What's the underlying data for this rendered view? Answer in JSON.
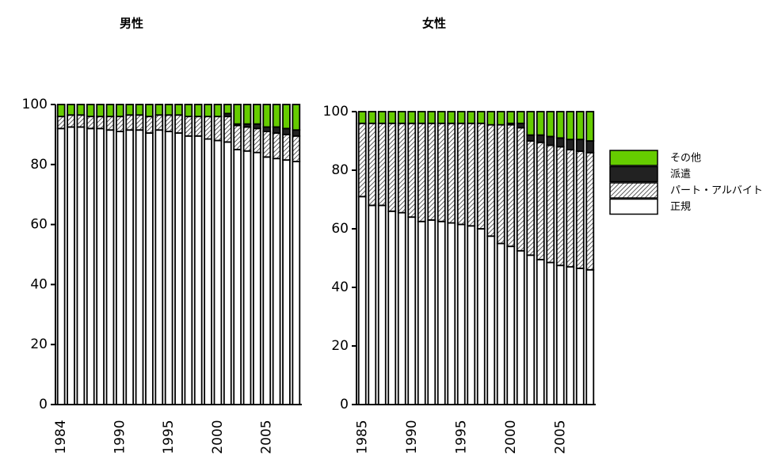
{
  "chart_data": [
    {
      "type": "bar",
      "stacked": true,
      "title": "男性",
      "categories": [
        "1984",
        null,
        null,
        null,
        null,
        null,
        "1990",
        null,
        null,
        null,
        null,
        "1995",
        null,
        null,
        null,
        null,
        "2000",
        null,
        null,
        null,
        null,
        "2005",
        null,
        null,
        null
      ],
      "ylim": [
        0,
        100
      ],
      "yticks": [
        0,
        20,
        40,
        60,
        80,
        100
      ],
      "series": [
        {
          "color": "#ffffff",
          "values": [
            92,
            92.5,
            92.5,
            92,
            92,
            91.5,
            91,
            91.5,
            91.5,
            90.5,
            91.5,
            91,
            90.5,
            89.5,
            89.5,
            88.5,
            88,
            87.5,
            85,
            84.5,
            84,
            82.5,
            82,
            81.5,
            81
          ]
        },
        {
          "color": "#ffffff",
          "hatch": true,
          "values": [
            4,
            4,
            4,
            4,
            4,
            4.5,
            5,
            5,
            5,
            5.5,
            5,
            5.5,
            6,
            6.5,
            6.5,
            7.5,
            8,
            8.5,
            8,
            8,
            8,
            8.5,
            8.5,
            8.5,
            8.5
          ]
        },
        {
          "color": "#222222",
          "values": [
            0,
            0,
            0,
            0,
            0,
            0,
            0,
            0,
            0,
            0,
            0,
            0,
            0,
            0,
            0,
            0,
            0,
            1,
            0.5,
            1,
            1.5,
            1.5,
            2,
            2,
            2
          ]
        },
        {
          "color": "#66cc00",
          "values": [
            4,
            3.5,
            3.5,
            4,
            4,
            4,
            4,
            3.5,
            3.5,
            4,
            3.5,
            3.5,
            3.5,
            4,
            4,
            4,
            4,
            3,
            6.5,
            6.5,
            6.5,
            7.5,
            7.5,
            8,
            8.5
          ]
        }
      ]
    },
    {
      "type": "bar",
      "stacked": true,
      "title": "女性",
      "categories": [
        "1985",
        null,
        null,
        null,
        null,
        "1990",
        null,
        null,
        null,
        null,
        "1995",
        null,
        null,
        null,
        null,
        "2000",
        null,
        null,
        null,
        null,
        "2005",
        null,
        null,
        null
      ],
      "ylim": [
        0,
        100
      ],
      "yticks": [
        0,
        20,
        40,
        60,
        80,
        100
      ],
      "series": [
        {
          "name": "正規",
          "color": "#ffffff",
          "values": [
            71,
            68,
            68,
            66,
            65.5,
            64,
            62.5,
            63,
            62.5,
            62,
            61.5,
            61,
            60,
            57.5,
            55,
            54,
            52.5,
            51,
            49.5,
            48.5,
            47.5,
            47,
            46.5,
            46
          ]
        },
        {
          "name": "パート・アルバイト",
          "color": "#ffffff",
          "hatch": true,
          "values": [
            25,
            28,
            28,
            30,
            30.5,
            32,
            33.5,
            33,
            33.5,
            34,
            34.5,
            35,
            36,
            38,
            40.5,
            41.5,
            42,
            39,
            40,
            40,
            40.5,
            40,
            40,
            40
          ]
        },
        {
          "name": "派遣",
          "color": "#222222",
          "values": [
            0,
            0,
            0,
            0,
            0,
            0,
            0,
            0,
            0,
            0,
            0,
            0,
            0,
            0,
            0,
            0.5,
            1.5,
            2,
            2.5,
            3,
            3,
            3.5,
            4,
            4
          ]
        },
        {
          "name": "その他",
          "color": "#66cc00",
          "values": [
            4,
            4,
            4,
            4,
            4,
            4,
            4,
            4,
            4,
            4,
            4,
            4,
            4,
            4.5,
            4.5,
            4,
            4,
            8,
            8,
            8.5,
            9,
            9.5,
            9.5,
            10
          ]
        }
      ]
    }
  ]
}
